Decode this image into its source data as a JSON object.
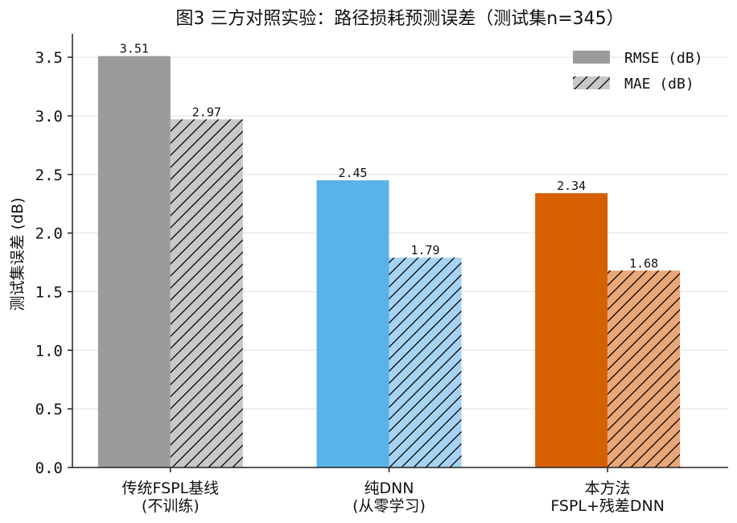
{
  "chart_data": {
    "type": "bar",
    "title": "图3 三方对照实验：路径损耗预测误差（测试集n=345）",
    "ylabel": "测试集误差 (dB)",
    "xlabel": "",
    "ylim": [
      0,
      3.7
    ],
    "yticks": [
      0.0,
      0.5,
      1.0,
      1.5,
      2.0,
      2.5,
      3.0,
      3.5
    ],
    "grid": true,
    "legend_position": "top-right",
    "categories": [
      [
        "传统FSPL基线",
        "(不训练)"
      ],
      [
        "纯DNN",
        "(从零学习)"
      ],
      [
        "本方法",
        "FSPL+残差DNN"
      ]
    ],
    "series": [
      {
        "name": "RMSE (dB)",
        "values": [
          3.51,
          2.45,
          2.34
        ],
        "hatched": false,
        "legend_color": "#9b9b9b",
        "colors": [
          "#9b9b9b",
          "#58b4e8",
          "#d65f00"
        ]
      },
      {
        "name": "MAE (dB)",
        "values": [
          2.97,
          1.79,
          1.68
        ],
        "hatched": true,
        "legend_color": "#c8c8c8",
        "colors": [
          "#c8c8c8",
          "#a6d3f2",
          "#e9a677"
        ]
      }
    ]
  }
}
